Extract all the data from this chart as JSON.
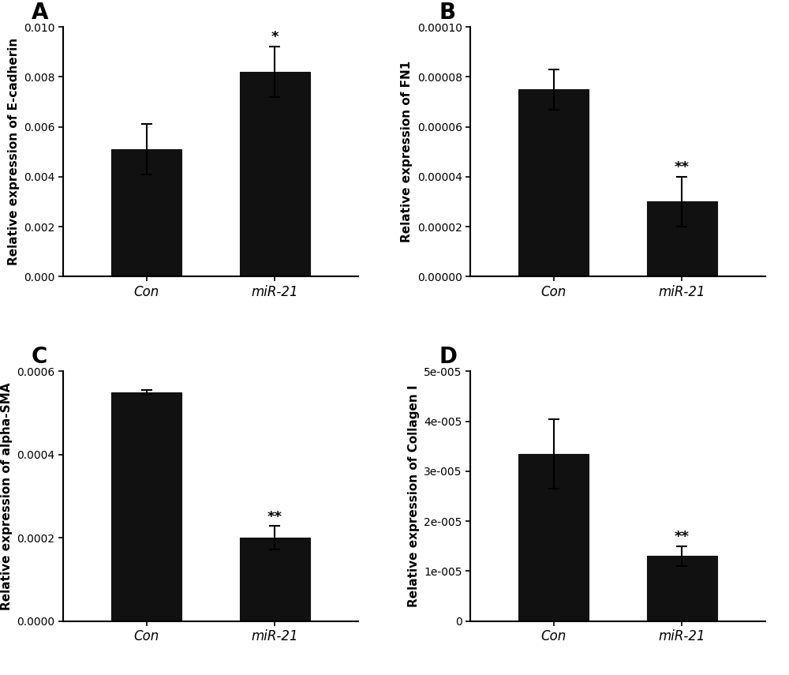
{
  "panels": [
    {
      "label": "A",
      "ylabel": "Relative expression of E-cadherin",
      "categories": [
        "Con",
        "miR-21"
      ],
      "values": [
        0.0051,
        0.0082
      ],
      "errors": [
        0.001,
        0.001
      ],
      "significance": [
        "",
        "*"
      ],
      "sig_pos": [
        null,
        0.0093
      ],
      "ylim": [
        0,
        0.01
      ],
      "yticks": [
        0.0,
        0.002,
        0.004,
        0.006,
        0.008,
        0.01
      ],
      "yticklabels": [
        "0.000",
        "0.002",
        "0.004",
        "0.006",
        "0.008",
        "0.010"
      ]
    },
    {
      "label": "B",
      "ylabel": "Relative expression of FN1",
      "categories": [
        "Con",
        "miR-21"
      ],
      "values": [
        7.5e-05,
        3e-05
      ],
      "errors": [
        8e-06,
        1e-05
      ],
      "significance": [
        "",
        "**"
      ],
      "sig_pos": [
        null,
        4.1e-05
      ],
      "ylim": [
        0,
        0.0001
      ],
      "yticks": [
        0.0,
        2e-05,
        4e-05,
        6e-05,
        8e-05,
        0.0001
      ],
      "yticklabels": [
        "0.00000",
        "0.00002",
        "0.00004",
        "0.00006",
        "0.00008",
        "0.00010"
      ]
    },
    {
      "label": "C",
      "ylabel": "Relative expression of alpha-SMA",
      "categories": [
        "Con",
        "miR-21"
      ],
      "values": [
        0.00055,
        0.0002
      ],
      "errors": [
        5e-06,
        2.8e-05
      ],
      "significance": [
        "",
        "**"
      ],
      "sig_pos": [
        null,
        0.000232
      ],
      "ylim": [
        0,
        0.0006
      ],
      "yticks": [
        0.0,
        0.0002,
        0.0004,
        0.0006
      ],
      "yticklabels": [
        "0.0000",
        "0.0002",
        "0.0004",
        "0.0006"
      ]
    },
    {
      "label": "D",
      "ylabel": "Relative expression of Collagen I",
      "categories": [
        "Con",
        "miR-21"
      ],
      "values": [
        3.35e-05,
        1.3e-05
      ],
      "errors": [
        7e-06,
        2e-06
      ],
      "significance": [
        "",
        "**"
      ],
      "sig_pos": [
        null,
        1.55e-05
      ],
      "ylim": [
        0,
        5e-05
      ],
      "yticks": [
        0,
        1e-05,
        2e-05,
        3e-05,
        4e-05,
        5e-05
      ],
      "yticklabels": [
        "0",
        "1e-005",
        "2e-005",
        "3e-005",
        "4e-005",
        "5e-005"
      ]
    }
  ],
  "bar_color": "#111111",
  "bar_width": 0.55,
  "background_color": "#ffffff",
  "fontsize_ylabel": 11,
  "fontsize_tick": 10,
  "fontsize_panel_label": 20,
  "fontsize_sig": 13,
  "fontsize_xticklabel": 12
}
